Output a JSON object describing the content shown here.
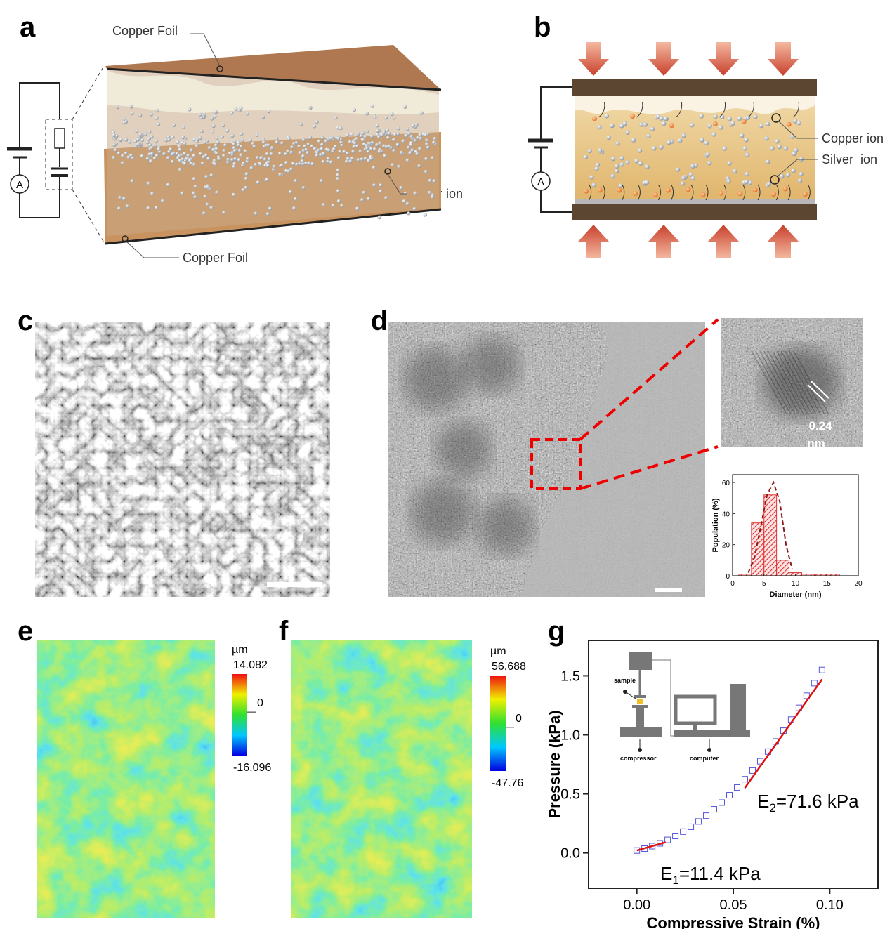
{
  "figure": {
    "panel_labels": [
      "a",
      "b",
      "c",
      "d",
      "e",
      "f",
      "g"
    ],
    "a": {
      "foil_top": "Copper Foil",
      "ion": "Silver ion",
      "foil_bottom": "Copper Foil",
      "ammeter": "A"
    },
    "b": {
      "copper_ion": "Copper ion",
      "silver_ion": "Silver  ion",
      "ammeter": "A"
    },
    "d": {
      "lattice_value": "0.24",
      "lattice_unit": "nm"
    },
    "e": {
      "colorbar": {
        "unit": "µm",
        "ticks": [
          14.082,
          0,
          -16.096
        ]
      }
    },
    "f": {
      "colorbar": {
        "unit": "µm",
        "ticks": [
          56.688,
          0,
          -47.76
        ]
      }
    },
    "g": {
      "inset_labels": [
        "sample",
        "compressor",
        "computer"
      ]
    }
  },
  "chart_data": [
    {
      "type": "histogram",
      "xlabel": "Diameter (nm)",
      "ylabel": "Population (%)",
      "bins": [
        1,
        3,
        5,
        7,
        9,
        11,
        13,
        15,
        17
      ],
      "values": [
        1,
        34,
        52,
        10,
        2,
        1,
        1,
        1
      ],
      "color": "#e03030",
      "xlim": [
        0,
        20
      ],
      "ylim": [
        0,
        65
      ],
      "xticks": [
        0,
        5,
        10,
        15,
        20
      ],
      "yticks": [
        0,
        20,
        40,
        60
      ],
      "fit": {
        "x": [
          2.5,
          3.5,
          4.5,
          5.5,
          6.5,
          7.5,
          8.5,
          9.5
        ],
        "y": [
          2,
          12,
          32,
          52,
          60,
          48,
          20,
          4
        ],
        "color": "#8b1a1a"
      }
    },
    {
      "type": "scatter",
      "xlabel": "Compressive Strain (%)",
      "ylabel": "Pressure (kPa)",
      "x": [
        0,
        0.004,
        0.008,
        0.012,
        0.016,
        0.02,
        0.024,
        0.028,
        0.032,
        0.036,
        0.04,
        0.044,
        0.048,
        0.052,
        0.056,
        0.06,
        0.064,
        0.068,
        0.072,
        0.076,
        0.08,
        0.084,
        0.088,
        0.092,
        0.096
      ],
      "y": [
        0.02,
        0.036,
        0.057,
        0.081,
        0.11,
        0.143,
        0.18,
        0.221,
        0.266,
        0.315,
        0.369,
        0.426,
        0.488,
        0.554,
        0.624,
        0.697,
        0.776,
        0.858,
        0.944,
        1.035,
        1.129,
        1.228,
        1.331,
        1.438,
        1.549
      ],
      "color": "#5555dd",
      "xlim": [
        -0.025,
        0.125
      ],
      "ylim": [
        -0.3,
        1.8
      ],
      "xticks": [
        {
          "value": 0,
          "label": "0.00"
        },
        0.05,
        {
          "value": 0.1,
          "label": "0.10"
        }
      ],
      "yticks": [
        {
          "value": 0,
          "label": "0.0"
        },
        0.5,
        {
          "value": 1,
          "label": "1.0"
        },
        1.5
      ],
      "fits": [
        {
          "x": [
            0,
            0.015
          ],
          "y": [
            0.02,
            0.09
          ],
          "color": "#e01010"
        },
        {
          "x": [
            0.056,
            0.096
          ],
          "y": [
            0.55,
            1.47
          ],
          "color": "#e01010"
        }
      ],
      "annotations": [
        {
          "text": "E",
          "sub": "2",
          "rest": "=71.6 kPa"
        },
        {
          "text": "E",
          "sub": "1",
          "rest": "=11.4 kPa"
        }
      ]
    }
  ]
}
